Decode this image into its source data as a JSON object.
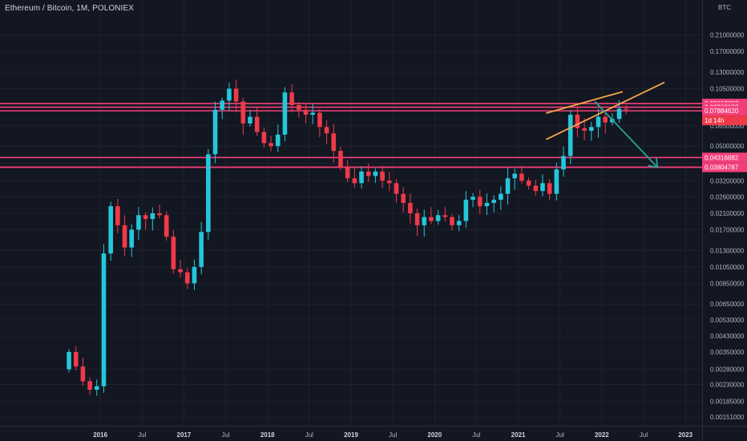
{
  "header": {
    "title": "Ethereum / Bitcoin, 1M, POLONIEX",
    "unit": "BTC"
  },
  "chart_data": {
    "type": "candlestick",
    "symbol": "Ethereum / Bitcoin",
    "interval": "1M",
    "exchange": "POLONIEX",
    "y_scale": "log",
    "ylim": [
      0.00135,
      0.33
    ],
    "y_ticks": [
      "0.21000000",
      "0.17000000",
      "0.13000000",
      "0.10500000",
      "0.08500000",
      "0.06500000",
      "0.05000000",
      "0.04000000",
      "0.03200000",
      "0.02600000",
      "0.02100000",
      "0.01700000",
      "0.01300000",
      "0.01050000",
      "0.00850000",
      "0.00650000",
      "0.00530000",
      "0.00430000",
      "0.00350000",
      "0.00280000",
      "0.00230000",
      "0.00185000",
      "0.00151000"
    ],
    "x_ticks": [
      {
        "label": "2016",
        "t": 2016.0,
        "bold": true
      },
      {
        "label": "Jul",
        "t": 2016.5,
        "bold": false
      },
      {
        "label": "2017",
        "t": 2017.0,
        "bold": true
      },
      {
        "label": "Jul",
        "t": 2017.5,
        "bold": false
      },
      {
        "label": "2018",
        "t": 2018.0,
        "bold": true
      },
      {
        "label": "Jul",
        "t": 2018.5,
        "bold": false
      },
      {
        "label": "2019",
        "t": 2019.0,
        "bold": true
      },
      {
        "label": "Jul",
        "t": 2019.5,
        "bold": false
      },
      {
        "label": "2020",
        "t": 2020.0,
        "bold": true
      },
      {
        "label": "Jul",
        "t": 2020.5,
        "bold": false
      },
      {
        "label": "2021",
        "t": 2021.0,
        "bold": true
      },
      {
        "label": "Jul",
        "t": 2021.5,
        "bold": false
      },
      {
        "label": "2022",
        "t": 2022.0,
        "bold": true
      },
      {
        "label": "Jul",
        "t": 2022.5,
        "bold": false
      },
      {
        "label": "2023",
        "t": 2023.0,
        "bold": true
      }
    ],
    "x_range": [
      2014.8,
      2023.2
    ],
    "start_month": "2015-08",
    "closes": [
      0.0035,
      0.0029,
      0.0024,
      0.00215,
      0.00225,
      0.0125,
      0.023,
      0.018,
      0.0135,
      0.017,
      0.0205,
      0.0195,
      0.021,
      0.0205,
      0.0155,
      0.0102,
      0.0098,
      0.0085,
      0.0105,
      0.0165,
      0.045,
      0.08,
      0.09,
      0.105,
      0.089,
      0.067,
      0.073,
      0.06,
      0.052,
      0.05,
      0.058,
      0.1,
      0.085,
      0.08,
      0.075,
      0.077,
      0.064,
      0.059,
      0.047,
      0.038,
      0.033,
      0.031,
      0.036,
      0.034,
      0.036,
      0.032,
      0.031,
      0.027,
      0.024,
      0.021,
      0.018,
      0.02,
      0.019,
      0.0205,
      0.02,
      0.018,
      0.019,
      0.025,
      0.026,
      0.023,
      0.024,
      0.025,
      0.027,
      0.033,
      0.035,
      0.032,
      0.03,
      0.028,
      0.031,
      0.027,
      0.037,
      0.044,
      0.075,
      0.063,
      0.061,
      0.064,
      0.073,
      0.068,
      0.071,
      0.081,
      0.08
    ],
    "price_lines": [
      {
        "value": 0.08662052,
        "label": "0.08662052"
      },
      {
        "value": 0.08268133,
        "label": "0.08268133"
      },
      {
        "value": 0.0788462,
        "label": "0.07884620",
        "note": "1d 14h"
      },
      {
        "value": 0.04316882,
        "label": "0.04316882"
      },
      {
        "value": 0.03804787,
        "label": "0.03804787"
      },
      {
        "value": 0.03804787,
        "label": "0.03804787"
      }
    ],
    "trendlines": [
      {
        "kind": "wedge-upper",
        "from": [
          "2021-05",
          0.0765
        ],
        "to": [
          "2022-04",
          0.101
        ],
        "color": "#f7a54a"
      },
      {
        "kind": "wedge-lower",
        "from": [
          "2021-05",
          0.0545
        ],
        "to": [
          "2022-10",
          0.114
        ],
        "color": "#f7a54a"
      },
      {
        "kind": "projection-arrow",
        "from": [
          "2021-12",
          0.089
        ],
        "to": [
          "2022-09",
          0.038
        ],
        "color": "#26a69a"
      }
    ],
    "colors": {
      "up": "#26c6da",
      "down": "#ef3a4a",
      "level": "#f23f79",
      "grid": "#1e222d",
      "background": "#131722"
    }
  }
}
